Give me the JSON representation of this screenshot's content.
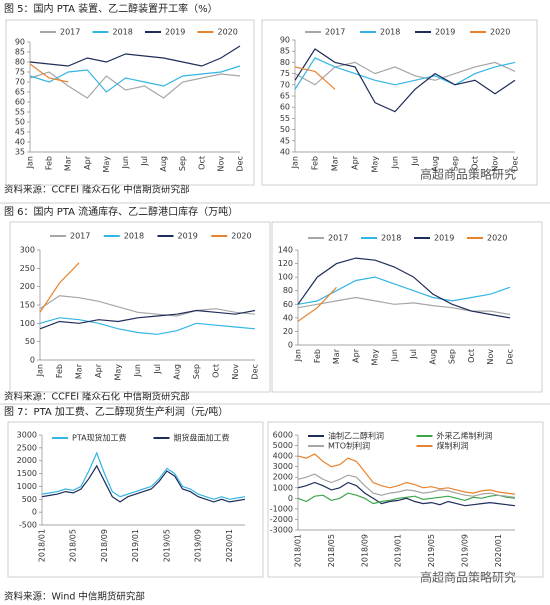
{
  "captions": [
    "图 5：国内 PTA 装置、乙二醇装置开工率（%）",
    "图 6：国内 PTA 流通库存、乙二醇港口库存（万吨）",
    "图 7：PTA 加工费、乙二醇现货生产利润（元/吨）"
  ],
  "sources": [
    "资料来源：CCFEI 隆众石化 中信期货研究部",
    "资料来源：CCFEI 隆众石化 中信期货研究部",
    "资料来源：Wind 中信期货研究部"
  ],
  "watermark": "高超商品策略研究",
  "chart_data": [
    {
      "type": "line",
      "categories": [
        "Jan",
        "Feb",
        "Mar",
        "Apr",
        "May",
        "Jun",
        "Jul",
        "Aug",
        "Sep",
        "Oct",
        "Nov",
        "Dec"
      ],
      "ylim": [
        35,
        90
      ],
      "yticks": [
        35,
        40,
        45,
        50,
        55,
        60,
        65,
        70,
        75,
        80,
        85,
        90
      ],
      "series": [
        {
          "name": "2017",
          "color": "#a6a6a6",
          "values": [
            72,
            75,
            68,
            62,
            73,
            66,
            68,
            62,
            70,
            72,
            74,
            73
          ]
        },
        {
          "name": "2018",
          "color": "#33b5e5",
          "values": [
            73,
            70,
            75,
            76,
            65,
            72,
            70,
            68,
            73,
            74,
            75,
            78
          ]
        },
        {
          "name": "2019",
          "color": "#1f2d5a",
          "values": [
            80,
            79,
            78,
            82,
            80,
            84,
            83,
            82,
            80,
            78,
            82,
            88
          ]
        },
        {
          "name": "2020",
          "color": "#e8822e",
          "values": [
            79,
            72,
            70,
            null,
            null,
            null,
            null,
            null,
            null,
            null,
            null,
            null
          ]
        }
      ]
    },
    {
      "type": "line",
      "categories": [
        "Jan",
        "Feb",
        "Mar",
        "Apr",
        "May",
        "Jun",
        "Jul",
        "Aug",
        "Sep",
        "Oct",
        "Nov",
        "Dec"
      ],
      "ylim": [
        40,
        90
      ],
      "yticks": [
        40,
        45,
        50,
        55,
        60,
        65,
        70,
        75,
        80,
        85,
        90
      ],
      "series": [
        {
          "name": "2017",
          "color": "#a6a6a6",
          "values": [
            75,
            70,
            78,
            80,
            75,
            78,
            74,
            72,
            75,
            78,
            80,
            76
          ]
        },
        {
          "name": "2018",
          "color": "#33b5e5",
          "values": [
            68,
            82,
            78,
            75,
            72,
            70,
            72,
            74,
            70,
            75,
            78,
            80
          ]
        },
        {
          "name": "2019",
          "color": "#1f2d5a",
          "values": [
            72,
            86,
            80,
            78,
            62,
            58,
            68,
            75,
            70,
            72,
            66,
            72
          ]
        },
        {
          "name": "2020",
          "color": "#e8822e",
          "values": [
            78,
            76,
            68,
            null,
            null,
            null,
            null,
            null,
            null,
            null,
            null,
            null
          ]
        }
      ]
    },
    {
      "type": "line",
      "categories": [
        "Jan",
        "Feb",
        "Mar",
        "Apr",
        "May",
        "Jun",
        "Jul",
        "Aug",
        "Sep",
        "Oct",
        "Nov",
        "Dec"
      ],
      "ylim": [
        0,
        300
      ],
      "yticks": [
        0,
        50,
        100,
        150,
        200,
        250,
        300
      ],
      "series": [
        {
          "name": "2017",
          "color": "#a6a6a6",
          "values": [
            140,
            175,
            170,
            160,
            145,
            130,
            125,
            120,
            135,
            140,
            130,
            125
          ]
        },
        {
          "name": "2018",
          "color": "#33b5e5",
          "values": [
            100,
            115,
            110,
            100,
            85,
            75,
            70,
            80,
            100,
            95,
            90,
            85
          ]
        },
        {
          "name": "2019",
          "color": "#1f2d5a",
          "values": [
            85,
            105,
            100,
            110,
            105,
            115,
            120,
            125,
            135,
            130,
            125,
            135
          ]
        },
        {
          "name": "2020",
          "color": "#e8822e",
          "values": [
            130,
            210,
            265,
            null,
            null,
            null,
            null,
            null,
            null,
            null,
            null,
            null
          ]
        }
      ]
    },
    {
      "type": "line",
      "categories": [
        "Jan",
        "Feb",
        "Mar",
        "Apr",
        "May",
        "Jun",
        "Jul",
        "Aug",
        "Sep",
        "Oct",
        "Nov",
        "Dec"
      ],
      "ylim": [
        0,
        140
      ],
      "yticks": [
        0,
        20,
        40,
        60,
        80,
        100,
        120,
        140
      ],
      "series": [
        {
          "name": "2017",
          "color": "#a6a6a6",
          "values": [
            55,
            60,
            65,
            70,
            65,
            60,
            62,
            58,
            55,
            50,
            50,
            45
          ]
        },
        {
          "name": "2018",
          "color": "#33b5e5",
          "values": [
            60,
            65,
            80,
            95,
            100,
            90,
            80,
            70,
            65,
            70,
            75,
            85
          ]
        },
        {
          "name": "2019",
          "color": "#1f2d5a",
          "values": [
            60,
            100,
            120,
            128,
            125,
            115,
            100,
            75,
            60,
            50,
            45,
            40
          ]
        },
        {
          "name": "2020",
          "color": "#e8822e",
          "values": [
            35,
            55,
            85,
            null,
            null,
            null,
            null,
            null,
            null,
            null,
            null,
            null
          ]
        }
      ]
    },
    {
      "type": "line",
      "categories": [
        "2018/01",
        null,
        null,
        null,
        "2018/05",
        null,
        null,
        null,
        "2018/09",
        null,
        null,
        null,
        "2019/01",
        null,
        null,
        null,
        "2019/05",
        null,
        null,
        null,
        "2019/09",
        null,
        null,
        null,
        "2020/01",
        null,
        null
      ],
      "ylim": [
        -500,
        3000
      ],
      "yticks": [
        -500,
        0,
        500,
        1000,
        1500,
        2000,
        2500,
        3000
      ],
      "series": [
        {
          "name": "PTA现货加工费",
          "color": "#33b5e5",
          "values": [
            700,
            750,
            800,
            900,
            850,
            1000,
            1600,
            2300,
            1500,
            800,
            600,
            700,
            800,
            900,
            1000,
            1300,
            1700,
            1500,
            1000,
            900,
            700,
            600,
            500,
            600,
            500,
            550,
            600
          ]
        },
        {
          "name": "期货盘面加工费",
          "color": "#1f2d5a",
          "values": [
            600,
            650,
            700,
            800,
            750,
            900,
            1300,
            1800,
            1200,
            600,
            400,
            600,
            700,
            800,
            900,
            1200,
            1600,
            1400,
            900,
            800,
            600,
            500,
            400,
            500,
            400,
            450,
            500
          ]
        }
      ]
    },
    {
      "type": "line",
      "categories": [
        "2018/01",
        null,
        null,
        null,
        "2018/05",
        null,
        null,
        null,
        "2018/09",
        null,
        null,
        null,
        "2019/01",
        null,
        null,
        null,
        "2019/05",
        null,
        null,
        null,
        "2019/09",
        null,
        null,
        null,
        "2020/01",
        null,
        null
      ],
      "ylim": [
        -3000,
        6000
      ],
      "yticks": [
        -3000,
        -2000,
        -1000,
        0,
        1000,
        2000,
        3000,
        4000,
        5000,
        6000
      ],
      "series": [
        {
          "name": "油制乙二醇利润",
          "color": "#1f2d5a",
          "values": [
            1000,
            1200,
            1500,
            1200,
            800,
            1000,
            1500,
            1200,
            500,
            0,
            -500,
            -300,
            -200,
            0,
            -300,
            -500,
            -400,
            -600,
            -300,
            -500,
            -700,
            -600,
            -500,
            -400,
            -500,
            -600,
            -700
          ]
        },
        {
          "name": "外采乙烯制利润",
          "color": "#3aa64a",
          "values": [
            0,
            -300,
            200,
            300,
            -200,
            0,
            500,
            300,
            0,
            -500,
            -300,
            -200,
            0,
            100,
            200,
            -100,
            0,
            100,
            200,
            0,
            -200,
            100,
            0,
            200,
            300,
            100,
            0
          ]
        },
        {
          "name": "MTO制利润",
          "color": "#a6a6a6",
          "values": [
            1800,
            2000,
            2300,
            1800,
            1500,
            1800,
            2200,
            2000,
            1200,
            500,
            300,
            500,
            600,
            800,
            700,
            500,
            600,
            800,
            700,
            500,
            300,
            200,
            400,
            500,
            300,
            200,
            100
          ]
        },
        {
          "name": "煤制利润",
          "color": "#e8822e",
          "values": [
            4000,
            3800,
            4200,
            3500,
            3000,
            3200,
            3800,
            3500,
            2500,
            1500,
            1200,
            1000,
            1200,
            1500,
            1300,
            1000,
            1100,
            900,
            1000,
            800,
            600,
            500,
            700,
            800,
            600,
            500,
            400
          ]
        }
      ]
    }
  ]
}
